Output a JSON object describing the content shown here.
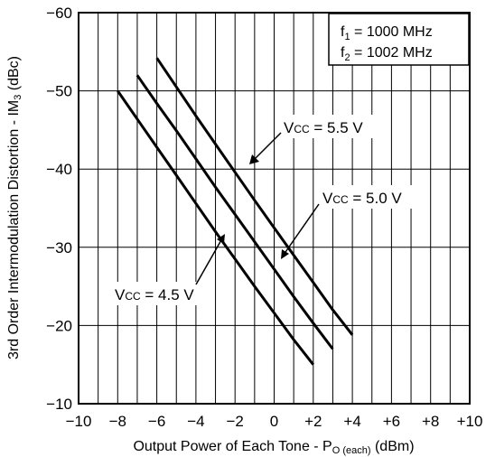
{
  "chart_data": {
    "type": "line",
    "title": "",
    "xlabel": {
      "prefix": "Output Power of Each Tone - P",
      "sub": "O (each)",
      "suffix": " (dBm)"
    },
    "ylabel": {
      "prefix": "3rd Order Intermodulation Distortion - IM",
      "sub": "3",
      "suffix": " (dBc)"
    },
    "xlim": [
      -10,
      10
    ],
    "ylim": [
      -10,
      -60
    ],
    "y_inverted": true,
    "grid": true,
    "x_ticks": [
      {
        "value": -10,
        "label": "−10"
      },
      {
        "value": -8,
        "label": "−8"
      },
      {
        "value": -6,
        "label": "−6"
      },
      {
        "value": -4,
        "label": "−4"
      },
      {
        "value": -2,
        "label": "−2"
      },
      {
        "value": 0,
        "label": "0"
      },
      {
        "value": 2,
        "label": "+2"
      },
      {
        "value": 4,
        "label": "+4"
      },
      {
        "value": 6,
        "label": "+6"
      },
      {
        "value": 8,
        "label": "+8"
      },
      {
        "value": 10,
        "label": "+10"
      }
    ],
    "y_ticks": [
      {
        "value": -60,
        "label": "−60"
      },
      {
        "value": -50,
        "label": "−50"
      },
      {
        "value": -40,
        "label": "−40"
      },
      {
        "value": -30,
        "label": "−30"
      },
      {
        "value": -20,
        "label": "−20"
      },
      {
        "value": -10,
        "label": "−10"
      }
    ],
    "legend": {
      "placement": "top-right",
      "lines": [
        {
          "prefix": "f",
          "sub": "1",
          "suffix": " = 1000 MHz"
        },
        {
          "prefix": "f",
          "sub": "2",
          "suffix": " = 1002 MHz"
        }
      ]
    },
    "series": [
      {
        "name": "V_CC = 4.5 V",
        "label": {
          "prefix": "V",
          "sub": "CC",
          "suffix": " = 4.5 V"
        },
        "x": [
          -8,
          -7,
          -6,
          -5,
          -4,
          -3,
          -2,
          -1,
          0,
          1,
          2
        ],
        "y": [
          -50,
          -46.4,
          -42.8,
          -39.2,
          -35.6,
          -32.0,
          -28.5,
          -25.0,
          -21.6,
          -18.2,
          -15.0
        ]
      },
      {
        "name": "V_CC = 5.0 V",
        "label": {
          "prefix": "V",
          "sub": "CC",
          "suffix": " = 5.0 V"
        },
        "x": [
          -7,
          -6,
          -5,
          -4,
          -3,
          -2,
          -1,
          0,
          1,
          2,
          3
        ],
        "y": [
          -52,
          -48.4,
          -44.9,
          -41.3,
          -37.7,
          -34.2,
          -30.7,
          -27.2,
          -23.7,
          -20.3,
          -17.0
        ]
      },
      {
        "name": "V_CC = 5.5 V",
        "label": {
          "prefix": "V",
          "sub": "CC",
          "suffix": " = 5.5 V"
        },
        "x": [
          -6,
          -5,
          -4,
          -3,
          -2,
          -1,
          0,
          1,
          2,
          3,
          4
        ],
        "y": [
          -54.2,
          -50.5,
          -46.8,
          -43.2,
          -39.6,
          -36.0,
          -32.5,
          -29.0,
          -25.5,
          -22.0,
          -18.8
        ]
      }
    ]
  }
}
